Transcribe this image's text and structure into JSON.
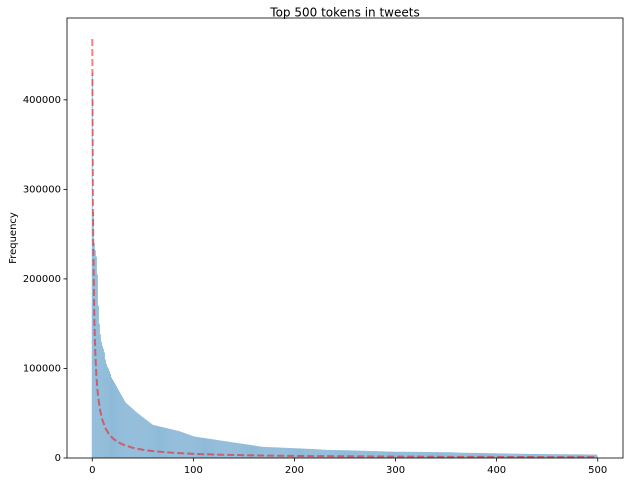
{
  "chart_data": {
    "type": "bar",
    "title": "Top 500 tokens in tweets",
    "ylabel": "Frequency",
    "xlim": [
      -25,
      525
    ],
    "xticks": [
      0,
      100,
      200,
      300,
      400,
      500
    ],
    "ylim": [
      0,
      491400
    ],
    "yticks": [
      0,
      100000,
      200000,
      300000,
      400000
    ],
    "series": [
      {
        "type": "bar",
        "color": "#1f77b4",
        "x": [
          0,
          1,
          2,
          3,
          4,
          5,
          6,
          7,
          8,
          9,
          10,
          11,
          12,
          13,
          14,
          15,
          16,
          17,
          18,
          19,
          20,
          21,
          22,
          23,
          24,
          25,
          26,
          27,
          28,
          29,
          30,
          31,
          32,
          33,
          34,
          35,
          36,
          37,
          38,
          39,
          40,
          41,
          42,
          43,
          44,
          45,
          46,
          47,
          48,
          49,
          50,
          51,
          52,
          53,
          54,
          55,
          56,
          57,
          58,
          59,
          60,
          61,
          62,
          63,
          64,
          65,
          66,
          67,
          68,
          69,
          70,
          71,
          72,
          73,
          74,
          75,
          76,
          77,
          78,
          79,
          80,
          81,
          82,
          83,
          84,
          85,
          86,
          87,
          88,
          89,
          90,
          91,
          92,
          93,
          94,
          95,
          96,
          97,
          98,
          99,
          100,
          101,
          102,
          103,
          104,
          105,
          106,
          107,
          108,
          109,
          110,
          111,
          112,
          113,
          114,
          115,
          116,
          117,
          118,
          119,
          120,
          121,
          122,
          123,
          124,
          125,
          126,
          127,
          128,
          129,
          130,
          131,
          132,
          133,
          134,
          135,
          136,
          137,
          138,
          139,
          140,
          141,
          142,
          143,
          144,
          145,
          146,
          147,
          148,
          149,
          150,
          151,
          152,
          153,
          154,
          155,
          156,
          157,
          158,
          159,
          160,
          161,
          162,
          163,
          164,
          165,
          166,
          167,
          168,
          169,
          170,
          171,
          172,
          173,
          174,
          175,
          176,
          177,
          178,
          179,
          180,
          181,
          182,
          183,
          184,
          185,
          186,
          187,
          188,
          189,
          190,
          191,
          192,
          193,
          194,
          195,
          196,
          197,
          198,
          199,
          200,
          201,
          202,
          203,
          204,
          205,
          206,
          207,
          208,
          209,
          210,
          211,
          212,
          213,
          214,
          215,
          216,
          217,
          218,
          219,
          220,
          221,
          222,
          223,
          224,
          225,
          226,
          227,
          228,
          229,
          230,
          231,
          232,
          233,
          234,
          235,
          236,
          237,
          238,
          239,
          240,
          241,
          242,
          243,
          244,
          245,
          246,
          247,
          248,
          249,
          250,
          251,
          252,
          253,
          254,
          255,
          256,
          257,
          258,
          259,
          260,
          261,
          262,
          263,
          264,
          265,
          266,
          267,
          268,
          269,
          270,
          271,
          272,
          273,
          274,
          275,
          276,
          277,
          278,
          279,
          280,
          281,
          282,
          283,
          284,
          285,
          286,
          287,
          288,
          289,
          290,
          291,
          292,
          293,
          294,
          295,
          296,
          297,
          298,
          299,
          300,
          301,
          302,
          303,
          304,
          305,
          306,
          307,
          308,
          309,
          310,
          311,
          312,
          313,
          314,
          315,
          316,
          317,
          318,
          319,
          320,
          321,
          322,
          323,
          324,
          325,
          326,
          327,
          328,
          329,
          330,
          331,
          332,
          333,
          334,
          335,
          336,
          337,
          338,
          339,
          340,
          341,
          342,
          343,
          344,
          345,
          346,
          347,
          348,
          349,
          350,
          351,
          352,
          353,
          354,
          355,
          356,
          357,
          358,
          359,
          360,
          361,
          362,
          363,
          364,
          365,
          366,
          367,
          368,
          369,
          370,
          371,
          372,
          373,
          374,
          375,
          376,
          377,
          378,
          379,
          380,
          381,
          382,
          383,
          384,
          385,
          386,
          387,
          388,
          389,
          390,
          391,
          392,
          393,
          394,
          395,
          396,
          397,
          398,
          399,
          400,
          401,
          402,
          403,
          404,
          405,
          406,
          407,
          408,
          409,
          410,
          411,
          412,
          413,
          414,
          415,
          416,
          417,
          418,
          419,
          420,
          421,
          422,
          423,
          424,
          425,
          426,
          427,
          428,
          429,
          430,
          431,
          432,
          433,
          434,
          435,
          436,
          437,
          438,
          439,
          440,
          441,
          442,
          443,
          444,
          445,
          446,
          447,
          448,
          449,
          450,
          451,
          452,
          453,
          454,
          455,
          456,
          457,
          458,
          459,
          460,
          461,
          462,
          463,
          464,
          465,
          466,
          467,
          468,
          469,
          470,
          471,
          472,
          473,
          474,
          475,
          476,
          477,
          478,
          479,
          480,
          481,
          482,
          483,
          484,
          485,
          486,
          487,
          488,
          489,
          490,
          491,
          492,
          493,
          494,
          495,
          496,
          497,
          498,
          499
        ],
        "values": [
          430000,
          275000,
          240000,
          232000,
          225000,
          205000,
          170000,
          150000,
          138000,
          130000,
          125000,
          122000,
          118000,
          110000,
          105000,
          102000,
          100000,
          97000,
          94000,
          90000,
          88000,
          86000,
          84000,
          82000,
          80000,
          78000,
          76000,
          74000,
          72000,
          70000,
          68000,
          66000,
          64000,
          62000,
          61000,
          60000,
          59000,
          58000,
          57000,
          56000,
          55000,
          54000,
          53000,
          52000,
          51000,
          50000,
          49100,
          48300,
          47400,
          46500,
          45600,
          44800,
          43900,
          43000,
          42200,
          41300,
          40400,
          39600,
          38700,
          37800,
          37000,
          36700,
          36500,
          36200,
          35900,
          35600,
          35400,
          35100,
          34800,
          34600,
          34300,
          34000,
          33800,
          33500,
          33200,
          33000,
          32700,
          32400,
          32200,
          31900,
          31600,
          31400,
          31100,
          30800,
          30600,
          30300,
          30000,
          29600,
          29200,
          28800,
          28400,
          28000,
          27600,
          27200,
          26800,
          26400,
          26000,
          25600,
          25200,
          24800,
          24400,
          24000,
          23800,
          23700,
          23500,
          23300,
          23100,
          23000,
          22800,
          22600,
          22500,
          22300,
          22100,
          21900,
          21800,
          21600,
          21400,
          21300,
          21100,
          20900,
          20700,
          20600,
          20400,
          20200,
          20100,
          19900,
          19700,
          19500,
          19400,
          19200,
          19000,
          18800,
          18700,
          18500,
          18300,
          18200,
          18000,
          17800,
          17700,
          17500,
          17300,
          17200,
          17000,
          16800,
          16700,
          16500,
          16300,
          16200,
          16000,
          15800,
          15700,
          15500,
          15300,
          15200,
          15000,
          14800,
          14700,
          14500,
          14300,
          14100,
          14000,
          13800,
          13600,
          13400,
          13300,
          13100,
          12900,
          12700,
          12500,
          12500,
          12400,
          12400,
          12300,
          12300,
          12200,
          12200,
          12100,
          12100,
          12000,
          12000,
          11900,
          11900,
          11800,
          11800,
          11700,
          11700,
          11600,
          11600,
          11500,
          11500,
          11400,
          11400,
          11300,
          11300,
          11200,
          11200,
          11100,
          11100,
          11000,
          11000,
          10900,
          10900,
          10800,
          10800,
          10700,
          10700,
          10600,
          10600,
          10500,
          10500,
          10400,
          10400,
          10300,
          10300,
          10200,
          10200,
          10100,
          10100,
          10000,
          10000,
          9900,
          9800,
          9800,
          9700,
          9600,
          9500,
          9500,
          9400,
          9300,
          9300,
          9200,
          9100,
          9100,
          9000,
          9000,
          9000,
          9000,
          8900,
          8900,
          8900,
          8900,
          8800,
          8800,
          8800,
          8800,
          8700,
          8700,
          8700,
          8700,
          8600,
          8600,
          8600,
          8600,
          8500,
          8500,
          8500,
          8500,
          8400,
          8400,
          8400,
          8300,
          8300,
          8300,
          8200,
          8200,
          8200,
          8100,
          8100,
          8100,
          8000,
          8000,
          8000,
          7900,
          7900,
          7900,
          7800,
          7800,
          7800,
          7700,
          7700,
          7700,
          7600,
          7600,
          7600,
          7500,
          7500,
          7500,
          7400,
          7400,
          7300,
          7300,
          7300,
          7200,
          7200,
          7200,
          7100,
          7100,
          7100,
          7000,
          7000,
          7000,
          7000,
          7000,
          7000,
          7000,
          7000,
          7000,
          7000,
          7000,
          7000,
          6900,
          6900,
          6900,
          6900,
          6900,
          6900,
          6900,
          6900,
          6900,
          6800,
          6800,
          6800,
          6800,
          6800,
          6800,
          6800,
          6800,
          6800,
          6700,
          6700,
          6700,
          6700,
          6700,
          6700,
          6700,
          6700,
          6700,
          6600,
          6600,
          6600,
          6600,
          6600,
          6600,
          6600,
          6600,
          6600,
          6500,
          6500,
          6500,
          6500,
          6500,
          6500,
          6500,
          6500,
          6500,
          6400,
          6400,
          6300,
          6300,
          6200,
          6200,
          6100,
          6100,
          6000,
          6000,
          6000,
          5900,
          5900,
          5800,
          5800,
          5800,
          5800,
          5800,
          5800,
          5700,
          5700,
          5700,
          5700,
          5700,
          5700,
          5600,
          5600,
          5600,
          5600,
          5600,
          5500,
          5500,
          5500,
          5500,
          5500,
          5400,
          5400,
          5400,
          5400,
          5400,
          5300,
          5300,
          5300,
          5300,
          5300,
          5200,
          5200,
          5200,
          5200,
          5200,
          5100,
          5100,
          5100,
          5100,
          5100,
          5000,
          5000,
          5000,
          5000,
          5000,
          4900,
          4900,
          4900,
          4900,
          4900,
          4800,
          4800,
          4800,
          4800,
          4700,
          4700,
          4700,
          4700,
          4600,
          4600,
          4600,
          4600,
          4500,
          4500,
          4500,
          4500,
          4500,
          4500,
          4500,
          4500,
          4500,
          4500,
          4500,
          4500,
          4500,
          4400,
          4400,
          4400,
          4400,
          4400,
          4400,
          4400,
          4400,
          4400,
          4400,
          4300,
          4300,
          4300,
          4300,
          4300,
          4300,
          4300,
          4300,
          4300,
          4200,
          4200,
          4200,
          4200,
          4200,
          4200,
          4200,
          4200,
          4200,
          4100,
          4100,
          4100,
          4100,
          4100,
          4100,
          4100,
          4100,
          4100,
          4000,
          4000,
          4000,
          4000,
          4000,
          4000,
          4000,
          4000,
          4000,
          3900,
          3900,
          3900,
          3900,
          3900,
          3900,
          3900,
          3900,
          3900
        ]
      },
      {
        "type": "line",
        "color": "#ff0000",
        "dashed": true,
        "x": [
          0,
          1,
          2,
          3,
          4,
          5,
          6,
          8,
          10,
          13,
          16,
          20,
          25,
          30,
          40,
          50,
          60,
          80,
          100,
          130,
          160,
          200,
          250,
          300,
          350,
          400,
          450,
          500
        ],
        "values": [
          468000,
          234000,
          156000,
          117000,
          93600,
          78000,
          66900,
          52000,
          42500,
          33400,
          27500,
          22300,
          18000,
          15100,
          11400,
          9200,
          7700,
          5800,
          4600,
          3600,
          2900,
          2300,
          1900,
          1600,
          1300,
          1200,
          1000,
          900
        ]
      }
    ]
  }
}
